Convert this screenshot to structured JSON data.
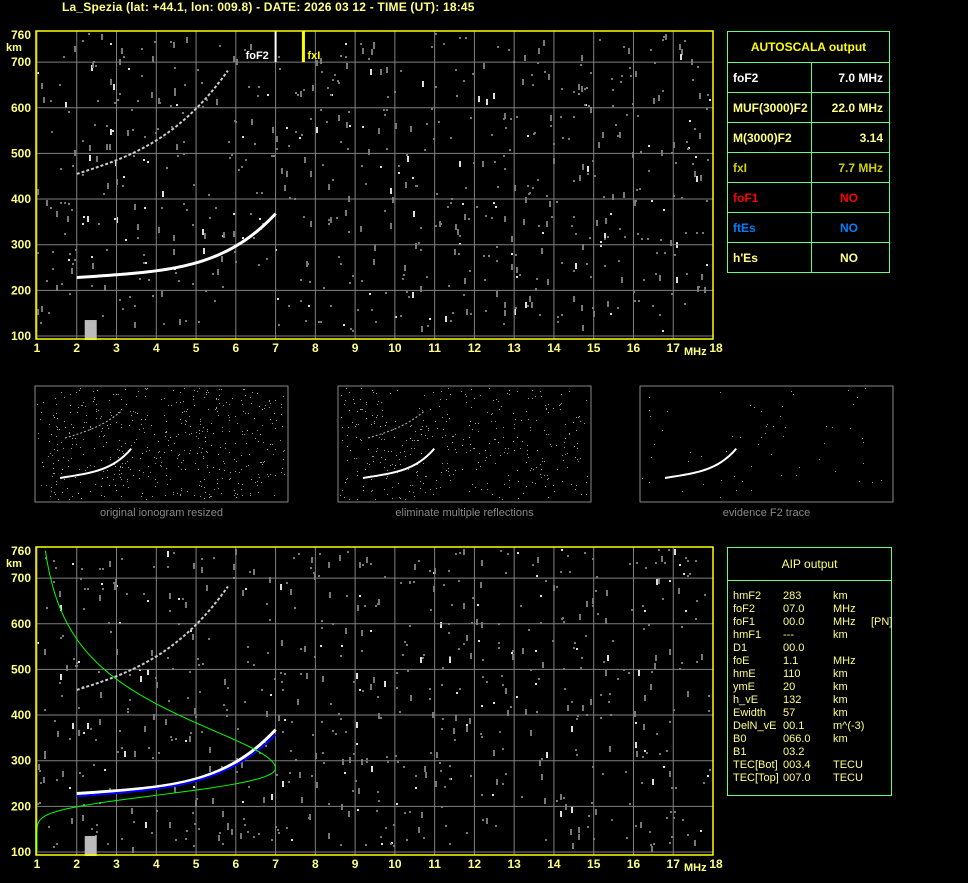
{
  "header": {
    "title": "La_Spezia (lat: +44.1, lon: 009.8) - DATE: 2026 03 12 - TIME (UT): 18:45"
  },
  "plot": {
    "y_ticks": [
      "760",
      "700",
      "600",
      "500",
      "400",
      "300",
      "200",
      "100"
    ],
    "y_unit": "km",
    "x_ticks": [
      "1",
      "2",
      "3",
      "4",
      "5",
      "6",
      "7",
      "8",
      "9",
      "10",
      "11",
      "12",
      "13",
      "14",
      "15",
      "16",
      "17",
      "18"
    ],
    "x_unit": "MHz",
    "markers": {
      "foF2_label": "foF2",
      "foF2_value": 7.0,
      "fxI_label": "fxI",
      "fxI_value": 7.7
    },
    "colors": {
      "frame": "#ffff00",
      "grid": "#808080",
      "fxI": "#ffff00",
      "profile": "#00ff00",
      "trace_fit": "#0000ff"
    }
  },
  "autoscala": {
    "title": "AUTOSCALA output",
    "rows": [
      {
        "label": "foF2",
        "value": "7.0 MHz",
        "color": "#ffffff"
      },
      {
        "label": "MUF(3000)F2",
        "value": "22.0 MHz",
        "color": "#ffff80"
      },
      {
        "label": "M(3000)F2",
        "value": "3.14",
        "color": "#ffff80"
      },
      {
        "label": "fxI",
        "value": "7.7 MHz",
        "color": "#d0d000"
      },
      {
        "label": "foF1",
        "value": "NO",
        "color": "#ff0000"
      },
      {
        "label": "ftEs",
        "value": "NO",
        "color": "#0080ff"
      },
      {
        "label": "h'Es",
        "value": "NO",
        "color": "#ffff80"
      }
    ]
  },
  "thumbnails": [
    {
      "caption": "original ionogram resized"
    },
    {
      "caption": "eliminate multiple reflections"
    },
    {
      "caption": "evidence F2 trace"
    }
  ],
  "aip": {
    "title": "AIP output",
    "rows": [
      [
        "hmF2",
        "283",
        "km",
        ""
      ],
      [
        "foF2",
        "07.0",
        "MHz",
        ""
      ],
      [
        "foF1",
        "00.0",
        "MHz",
        "[PN]"
      ],
      [
        "hmF1",
        "---",
        "km",
        ""
      ],
      [
        "D1",
        "00.0",
        "",
        ""
      ],
      [
        "foE",
        "1.1",
        "MHz",
        ""
      ],
      [
        "hmE",
        "110",
        "km",
        ""
      ],
      [
        "ymE",
        "20",
        "km",
        ""
      ],
      [
        "h_vE",
        "132",
        "km",
        ""
      ],
      [
        "Ewidth",
        "57",
        "km",
        ""
      ],
      [
        "DelN_vE",
        "00.1",
        "m^(-3)",
        ""
      ],
      [
        "B0",
        "066.0",
        "km",
        ""
      ],
      [
        "B1",
        "03.2",
        "",
        ""
      ],
      [
        "TEC[Bot]",
        "003.4",
        "TECU",
        ""
      ],
      [
        "TEC[Top]",
        "007.0",
        "TECU",
        ""
      ]
    ]
  }
}
